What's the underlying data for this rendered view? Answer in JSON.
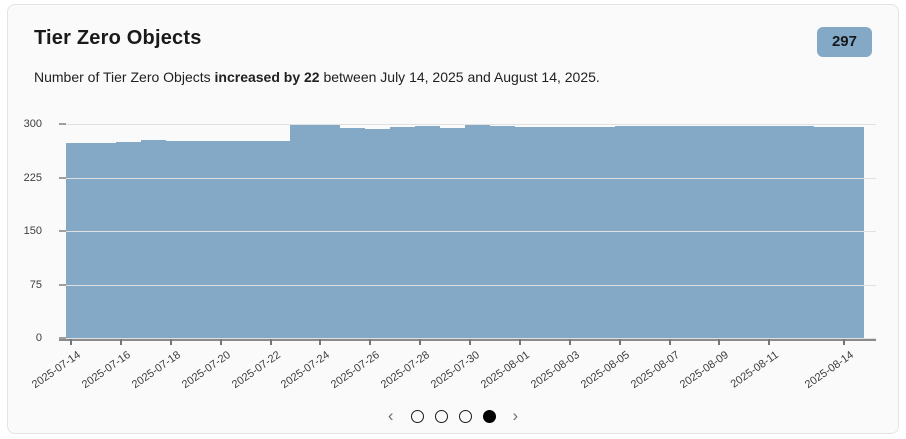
{
  "card": {
    "title": "Tier Zero Objects",
    "badge": "297",
    "description": {
      "prefix": "Number of Tier Zero Objects ",
      "bold": "increased by 22",
      "suffix": " between July 14, 2025 and August 14, 2025."
    }
  },
  "chart_data": {
    "type": "bar",
    "title": "Tier Zero Objects",
    "x": [
      "2025-07-14",
      "2025-07-15",
      "2025-07-16",
      "2025-07-17",
      "2025-07-18",
      "2025-07-19",
      "2025-07-20",
      "2025-07-21",
      "2025-07-22",
      "2025-07-23",
      "2025-07-24",
      "2025-07-25",
      "2025-07-26",
      "2025-07-27",
      "2025-07-28",
      "2025-07-29",
      "2025-07-30",
      "2025-07-31",
      "2025-08-01",
      "2025-08-02",
      "2025-08-03",
      "2025-08-04",
      "2025-08-05",
      "2025-08-06",
      "2025-08-07",
      "2025-08-08",
      "2025-08-09",
      "2025-08-10",
      "2025-08-11",
      "2025-08-12",
      "2025-08-13",
      "2025-08-14"
    ],
    "values": [
      275,
      275,
      276,
      279,
      277,
      277,
      277,
      277,
      277,
      300,
      300,
      296,
      294,
      297,
      299,
      296,
      300,
      299,
      297,
      297,
      297,
      297,
      299,
      299,
      299,
      298,
      298,
      298,
      298,
      298,
      297,
      297
    ],
    "ylim": [
      0,
      300
    ],
    "y_ticks": [
      0,
      75,
      150,
      225,
      300
    ],
    "x_ticks": [
      {
        "index": 0,
        "label": "2025-07-14"
      },
      {
        "index": 2,
        "label": "2025-07-16"
      },
      {
        "index": 4,
        "label": "2025-07-18"
      },
      {
        "index": 6,
        "label": "2025-07-20"
      },
      {
        "index": 8,
        "label": "2025-07-22"
      },
      {
        "index": 10,
        "label": "2025-07-24"
      },
      {
        "index": 12,
        "label": "2025-07-26"
      },
      {
        "index": 14,
        "label": "2025-07-28"
      },
      {
        "index": 16,
        "label": "2025-07-30"
      },
      {
        "index": 18,
        "label": "2025-08-01"
      },
      {
        "index": 20,
        "label": "2025-08-03"
      },
      {
        "index": 22,
        "label": "2025-08-05"
      },
      {
        "index": 24,
        "label": "2025-08-07"
      },
      {
        "index": 26,
        "label": "2025-08-09"
      },
      {
        "index": 28,
        "label": "2025-08-11"
      },
      {
        "index": 31,
        "label": "2025-08-14"
      }
    ],
    "bar_color": "#84a9c6",
    "grid": true,
    "legend": false
  },
  "pagination": {
    "prev_label": "‹",
    "next_label": "›",
    "dot_count": 4,
    "active_index": 3
  }
}
